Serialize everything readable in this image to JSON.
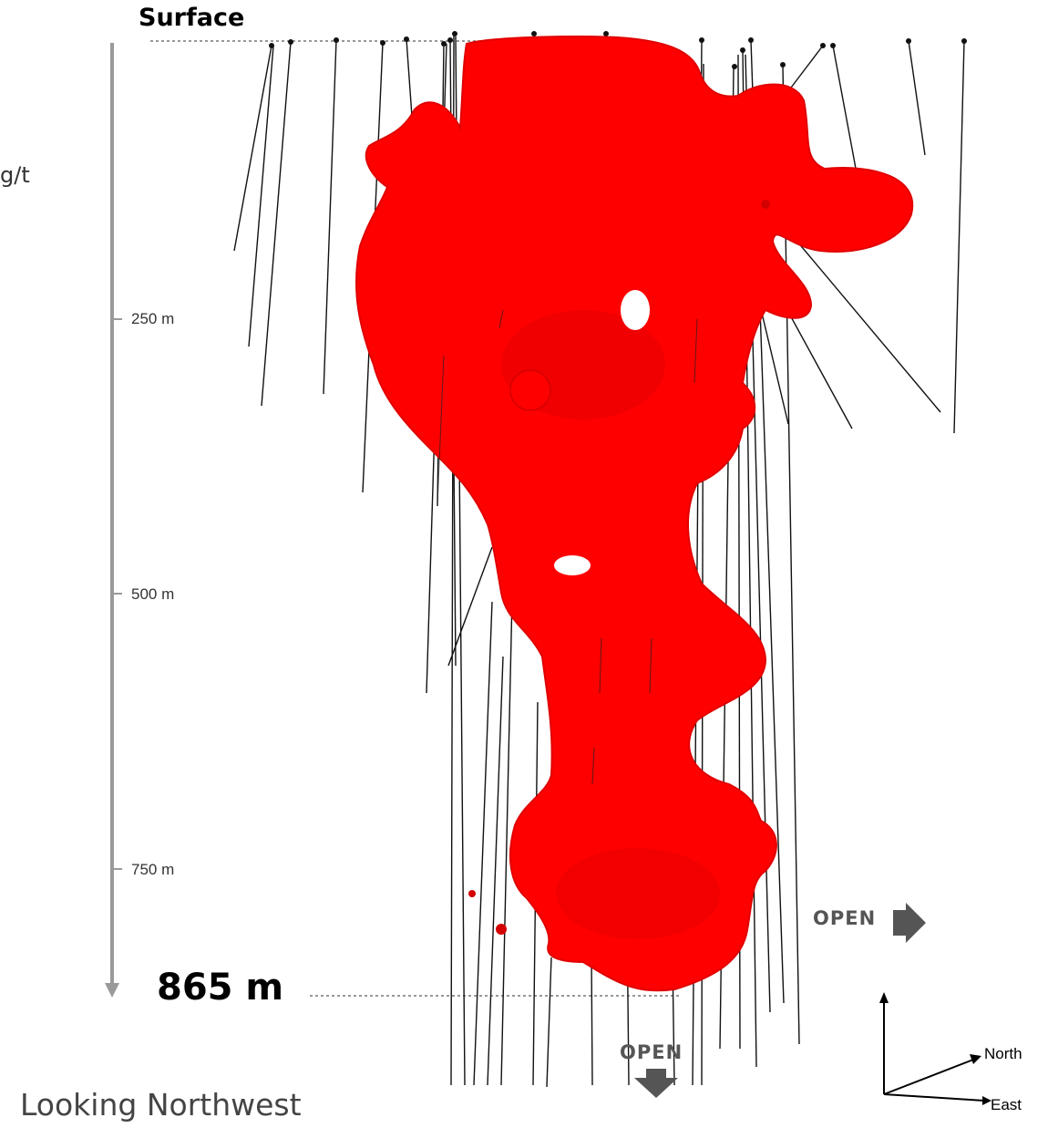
{
  "labels": {
    "surface": "Surface",
    "grade_fragment": "g/t",
    "depth_bottom": "865 m",
    "caption": "Looking Northwest"
  },
  "depth_ticks": [
    "250 m",
    "500 m",
    "750 m"
  ],
  "open_indicators": {
    "right": "OPEN",
    "down": "OPEN"
  },
  "compass": {
    "north": "North",
    "east": "East"
  },
  "colors": {
    "ore_body": "#ff0000",
    "ore_body_shadow": "#d40000",
    "drill_hole": "#111111",
    "depth_axis": "#9a9a9a",
    "open_arrow": "#555555"
  }
}
